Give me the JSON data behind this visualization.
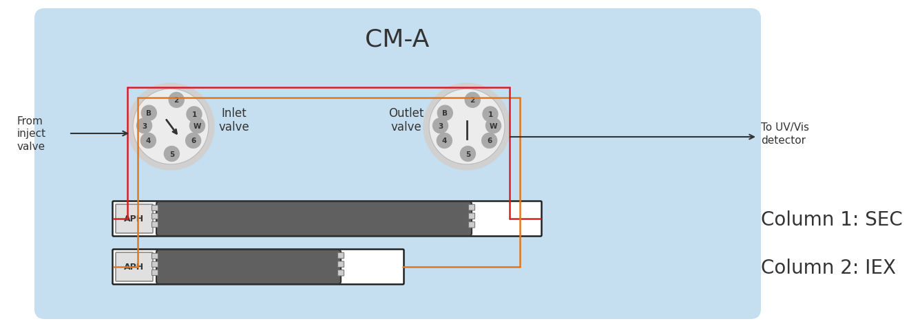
{
  "title": "CM-A",
  "background_color": "#c5dff0",
  "outer_bg": "#ffffff",
  "col1_label": "Column 1: SEC",
  "col2_label": "Column 2: IEX",
  "inlet_label": "Inlet\nvalve",
  "outlet_label": "Outlet\nvalve",
  "from_inject_label": "From\ninject\nvalve",
  "to_detector_label": "To UV/Vis\ndetector",
  "red_color": "#d42020",
  "orange_color": "#e07820",
  "dark_gray": "#555555",
  "column_bg": "#ffffff",
  "column_border": "#222222",
  "aph_bg": "#e0e0e0",
  "col_body_color": "#606060",
  "valve_face": "#ececec",
  "valve_shadow": "#c8c8c8",
  "valve_port": "#aaaaaa",
  "valve_port_text": "#333333"
}
